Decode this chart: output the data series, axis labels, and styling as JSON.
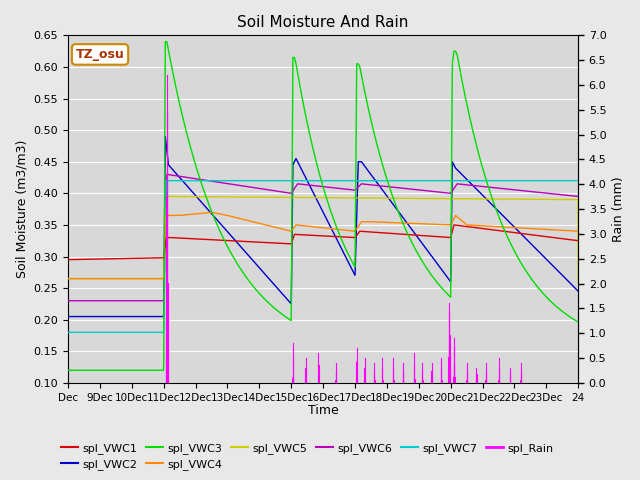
{
  "title": "Soil Moisture And Rain",
  "xlabel": "Time",
  "ylabel_left": "Soil Moisture (m3/m3)",
  "ylabel_right": "Rain (mm)",
  "ylim_left": [
    0.1,
    0.65
  ],
  "ylim_right": [
    0.0,
    7.0
  ],
  "yticks_left": [
    0.1,
    0.15,
    0.2,
    0.25,
    0.3,
    0.35,
    0.4,
    0.45,
    0.5,
    0.55,
    0.6,
    0.65
  ],
  "yticks_right": [
    0.0,
    0.5,
    1.0,
    1.5,
    2.0,
    2.5,
    3.0,
    3.5,
    4.0,
    4.5,
    5.0,
    5.5,
    6.0,
    6.5,
    7.0
  ],
  "xtick_labels": [
    "Dec",
    "9Dec",
    "10Dec",
    "11Dec",
    "12Dec",
    "13Dec",
    "14Dec",
    "15Dec",
    "16Dec",
    "17Dec",
    "18Dec",
    "19Dec",
    "20Dec",
    "21Dec",
    "22Dec",
    "23Dec",
    "24"
  ],
  "colors": {
    "VWC1": "#dd0000",
    "VWC2": "#0000cc",
    "VWC3": "#00dd00",
    "VWC4": "#ff8800",
    "VWC5": "#cccc00",
    "VWC6": "#bb00bb",
    "VWC7": "#00cccc",
    "Rain": "#ff00ff"
  },
  "annotation_text": "TZ_osu",
  "annotation_fgcolor": "#aa3300",
  "annotation_bgborder": "#cc8800",
  "fig_facecolor": "#e8e8e8",
  "axes_facecolor": "#d8d8d8"
}
